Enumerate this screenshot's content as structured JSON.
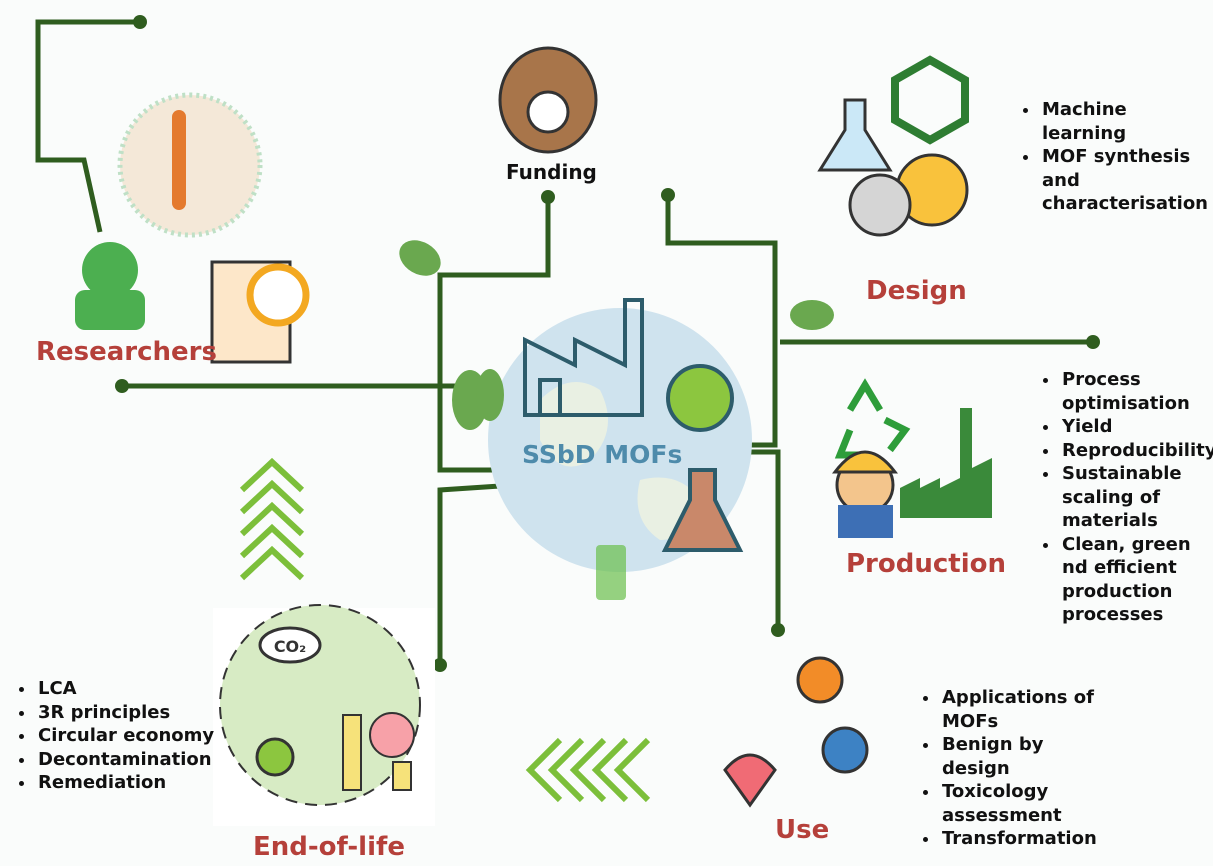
{
  "center": {
    "label": "SSbD MOFs"
  },
  "nodes": [
    {
      "label": "Funding"
    },
    {
      "label": "Design",
      "bullets": [
        "Machine learning",
        "MOF synthesis and characterisation"
      ]
    },
    {
      "label": "Researchers"
    },
    {
      "label": "Production",
      "bullets": [
        "Process optimisation",
        "Yield",
        "Reproducibility",
        "Sustainable scaling of materials",
        "Clean, green nd efficient production processes"
      ]
    },
    {
      "label": "Use",
      "bullets": [
        "Applications of MOFs",
        "Benign by design",
        "Toxicology assessment",
        "Transformation"
      ]
    },
    {
      "label": "End-of-life",
      "icon_text": "CO₂",
      "bullets": [
        "LCA",
        "3R principles",
        "Circular economy",
        "Decontamination",
        "Remediation"
      ]
    }
  ]
}
